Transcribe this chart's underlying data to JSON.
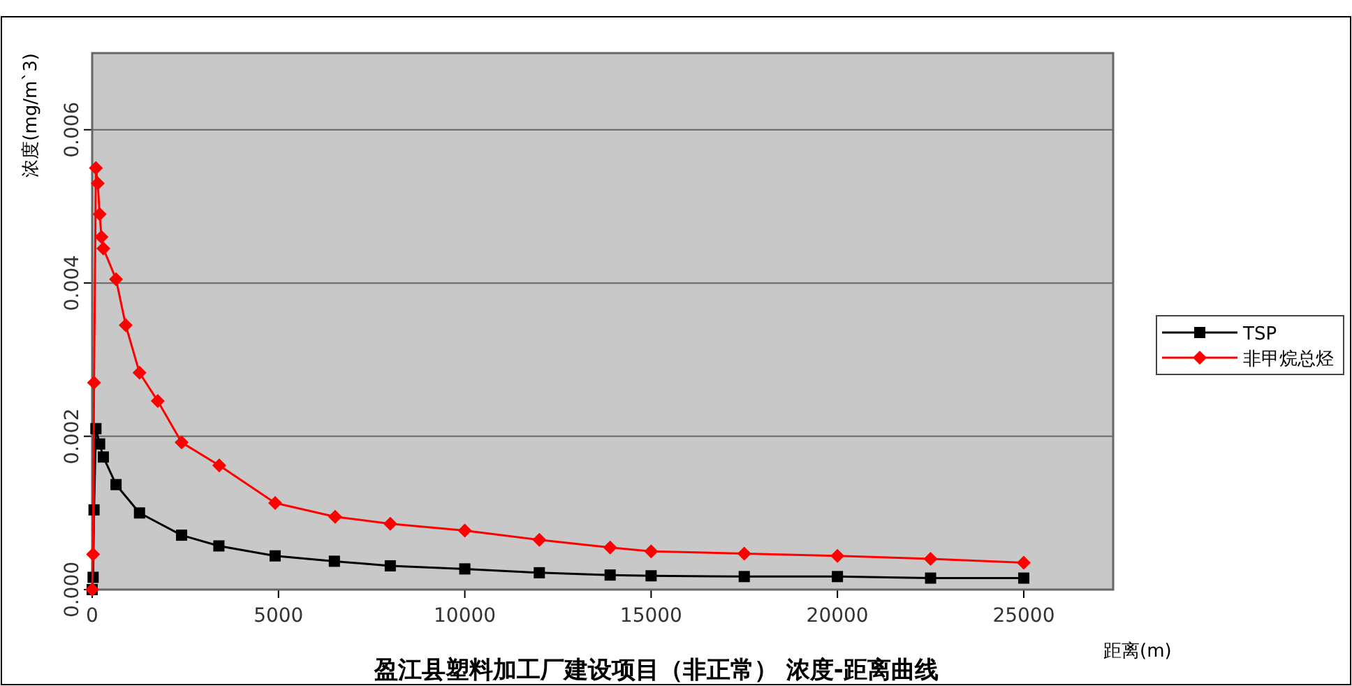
{
  "chart_data": {
    "type": "line",
    "title": "盈江县塑料加工厂建设项目（非正常） 浓度-距离曲线",
    "xlabel": "距离(m)",
    "ylabel": "浓度(mg/m`3)",
    "xlim": [
      0,
      27400
    ],
    "xticks": [
      0,
      5000,
      10000,
      15000,
      20000,
      25000
    ],
    "ylim": [
      0,
      0.007
    ],
    "yticks": [
      {
        "value": 0,
        "label": "0.000"
      },
      {
        "value": 0.002,
        "label": "0.002"
      },
      {
        "value": 0.004,
        "label": "0.004"
      },
      {
        "value": 0.006,
        "label": "0.006"
      }
    ],
    "grid": "y",
    "legend": "right",
    "line_style": "solid",
    "series": [
      {
        "name": "TSP",
        "color": "#000000",
        "marker": "square",
        "x": [
          0,
          25,
          50,
          100,
          200,
          300,
          640,
          1270,
          2400,
          3400,
          4910,
          6500,
          8000,
          10000,
          12000,
          13900,
          15000,
          17500,
          20000,
          22500,
          25000
        ],
        "values": [
          0,
          0.00016,
          0.00104,
          0.0021,
          0.0019,
          0.00173,
          0.00137,
          0.001,
          0.00071,
          0.00057,
          0.00044,
          0.00037,
          0.00031,
          0.00027,
          0.00022,
          0.00019,
          0.00018,
          0.00017,
          0.00017,
          0.00015,
          0.00015
        ]
      },
      {
        "name": "非甲烷总烃",
        "color": "#ff0000",
        "marker": "diamond",
        "x": [
          0,
          25,
          50,
          100,
          150,
          200,
          250,
          300,
          640,
          900,
          1270,
          1760,
          2400,
          3410,
          4910,
          6520,
          8000,
          10000,
          12000,
          13900,
          15000,
          17500,
          20000,
          22500,
          25000
        ],
        "values": [
          0,
          0.00046,
          0.0027,
          0.0055,
          0.0053,
          0.0049,
          0.0046,
          0.00445,
          0.00405,
          0.00345,
          0.00283,
          0.00246,
          0.00192,
          0.00162,
          0.00113,
          0.00095,
          0.00086,
          0.00077,
          0.00065,
          0.00055,
          0.0005,
          0.00047,
          0.00044,
          0.0004,
          0.00035
        ]
      }
    ]
  }
}
